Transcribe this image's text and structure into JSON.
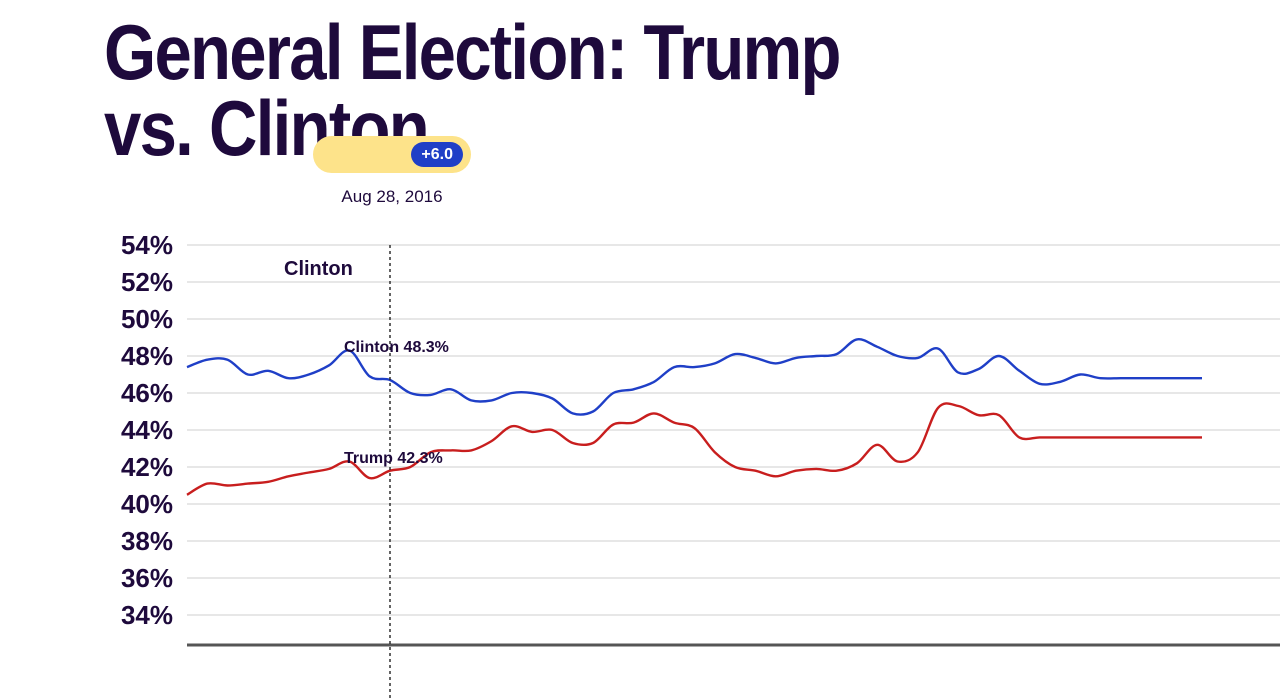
{
  "title": "General Election: Trump vs. Clinton",
  "tooltip": {
    "date": "Aug 28, 2016",
    "margin": "+6.0"
  },
  "corner_label": "Clinton",
  "annotations": {
    "clinton": "Clinton 48.3%",
    "trump": "Trump 42.3%"
  },
  "colors": {
    "clinton": "#1f3fc7",
    "trump": "#c81e1e",
    "grid": "#cfcfcf",
    "axis": "#555555",
    "text": "#1e0a3c"
  },
  "chart_data": {
    "type": "line",
    "title": "General Election: Trump vs. Clinton",
    "xlabel": "",
    "ylabel": "",
    "ylim": [
      32,
      54
    ],
    "yticks": [
      34,
      36,
      38,
      40,
      42,
      44,
      46,
      48,
      50,
      52,
      54
    ],
    "y_tick_labels": [
      "34%",
      "36%",
      "38%",
      "40%",
      "42%",
      "44%",
      "46%",
      "48%",
      "50%",
      "52%",
      "54%"
    ],
    "grid": true,
    "x_index_max": 100,
    "hover_index": 20,
    "series": [
      {
        "name": "Clinton",
        "x": [
          0,
          2,
          4,
          6,
          8,
          10,
          12,
          14,
          16,
          18,
          20,
          22,
          24,
          26,
          28,
          30,
          32,
          34,
          36,
          38,
          40,
          42,
          44,
          46,
          48,
          50,
          52,
          54,
          56,
          58,
          60,
          62,
          64,
          66,
          68,
          70,
          72,
          74,
          76,
          78,
          80,
          82,
          84,
          86,
          88,
          90,
          92,
          94,
          96,
          98,
          100
        ],
        "values": [
          47.4,
          47.8,
          47.8,
          47.0,
          47.2,
          46.8,
          47.0,
          47.5,
          48.3,
          46.9,
          46.7,
          46.0,
          45.9,
          46.2,
          45.6,
          45.6,
          46.0,
          46.0,
          45.7,
          44.9,
          45.0,
          46.0,
          46.2,
          46.6,
          47.4,
          47.4,
          47.6,
          48.1,
          47.9,
          47.6,
          47.9,
          48.0,
          48.1,
          48.9,
          48.5,
          48.0,
          47.9,
          48.4,
          47.1,
          47.3,
          48.0,
          47.2,
          46.5,
          46.6,
          47.0,
          46.8,
          46.8,
          46.8,
          46.8,
          46.8,
          46.8
        ]
      },
      {
        "name": "Trump",
        "x": [
          0,
          2,
          4,
          6,
          8,
          10,
          12,
          14,
          16,
          18,
          20,
          22,
          24,
          26,
          28,
          30,
          32,
          34,
          36,
          38,
          40,
          42,
          44,
          46,
          48,
          50,
          52,
          54,
          56,
          58,
          60,
          62,
          64,
          66,
          68,
          70,
          72,
          74,
          76,
          78,
          80,
          82,
          84,
          86,
          88,
          90,
          92,
          94,
          96,
          98,
          100
        ],
        "values": [
          40.5,
          41.1,
          41.0,
          41.1,
          41.2,
          41.5,
          41.7,
          41.9,
          42.3,
          41.4,
          41.8,
          42.0,
          42.8,
          42.9,
          42.9,
          43.4,
          44.2,
          43.9,
          44.0,
          43.3,
          43.3,
          44.3,
          44.4,
          44.9,
          44.4,
          44.1,
          42.8,
          42.0,
          41.8,
          41.5,
          41.8,
          41.9,
          41.8,
          42.2,
          43.2,
          42.3,
          42.8,
          45.2,
          45.3,
          44.8,
          44.8,
          43.6,
          43.6,
          43.6,
          43.6,
          43.6,
          43.6,
          43.6,
          43.6,
          43.6,
          43.6
        ]
      }
    ]
  }
}
